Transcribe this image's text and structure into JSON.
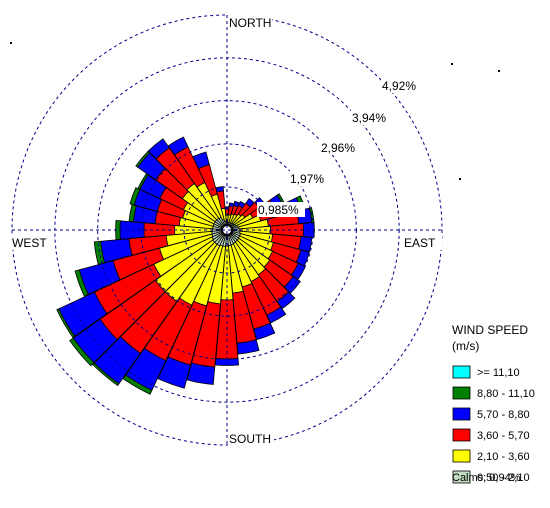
{
  "chart_data": {
    "type": "wind-rose",
    "directions": {
      "north": "NORTH",
      "south": "SOUTH",
      "east": "EAST",
      "west": "WEST"
    },
    "sector_count": 36,
    "rings": [
      {
        "value": 0.985,
        "label": "0,985%"
      },
      {
        "value": 1.97,
        "label": "1,97%"
      },
      {
        "value": 2.96,
        "label": "2,96%"
      },
      {
        "value": 3.94,
        "label": "3,94%"
      },
      {
        "value": 4.92,
        "label": "4,92%"
      }
    ],
    "legend": {
      "title": "WIND SPEED",
      "unit": "(m/s)",
      "bins": [
        {
          "label": ">= 11,10",
          "color": "#00ffff"
        },
        {
          "label": "8,80 - 11,10",
          "color": "#007f00"
        },
        {
          "label": "5,70 - 8,80",
          "color": "#0000ff"
        },
        {
          "label": "3,60 - 5,70",
          "color": "#ff0000"
        },
        {
          "label": "2,10 - 3,60",
          "color": "#ffff00"
        },
        {
          "label": "0,50 - 2,10",
          "color": "#c0dcc0"
        }
      ]
    },
    "calms": "Calms: 0,94%",
    "cumulative_units": "percent frequency, cumulative from inner bin to outer bin",
    "sectors": [
      {
        "dir": 0,
        "c": [
          0.18,
          0.35,
          0.48,
          0.53,
          0.53,
          0.53
        ]
      },
      {
        "dir": 10,
        "c": [
          0.18,
          0.35,
          0.55,
          0.62,
          0.62,
          0.62
        ]
      },
      {
        "dir": 20,
        "c": [
          0.18,
          0.38,
          0.58,
          0.68,
          0.68,
          0.68
        ]
      },
      {
        "dir": 30,
        "c": [
          0.18,
          0.4,
          0.62,
          0.72,
          0.72,
          0.72
        ]
      },
      {
        "dir": 40,
        "c": [
          0.2,
          0.45,
          0.75,
          0.88,
          0.88,
          0.88
        ]
      },
      {
        "dir": 50,
        "c": [
          0.2,
          0.5,
          0.9,
          1.05,
          1.05,
          1.05
        ]
      },
      {
        "dir": 60,
        "c": [
          0.22,
          0.65,
          1.2,
          1.4,
          1.45,
          1.45
        ]
      },
      {
        "dir": 70,
        "c": [
          0.25,
          0.8,
          1.5,
          1.75,
          1.85,
          1.85
        ]
      },
      {
        "dir": 80,
        "c": [
          0.28,
          0.95,
          1.65,
          1.95,
          2.0,
          2.0
        ]
      },
      {
        "dir": 90,
        "c": [
          0.3,
          1.0,
          1.75,
          2.0,
          2.0,
          2.0
        ]
      },
      {
        "dir": 100,
        "c": [
          0.3,
          1.05,
          1.7,
          1.95,
          1.95,
          1.95
        ]
      },
      {
        "dir": 110,
        "c": [
          0.32,
          1.1,
          1.75,
          1.95,
          1.95,
          1.95
        ]
      },
      {
        "dir": 120,
        "c": [
          0.32,
          1.15,
          1.8,
          1.98,
          1.98,
          1.98
        ]
      },
      {
        "dir": 130,
        "c": [
          0.33,
          1.2,
          1.85,
          2.05,
          2.05,
          2.05
        ]
      },
      {
        "dir": 140,
        "c": [
          0.33,
          1.25,
          2.0,
          2.2,
          2.2,
          2.2
        ]
      },
      {
        "dir": 150,
        "c": [
          0.34,
          1.3,
          2.15,
          2.35,
          2.35,
          2.35
        ]
      },
      {
        "dir": 160,
        "c": [
          0.35,
          1.35,
          2.35,
          2.6,
          2.6,
          2.6
        ]
      },
      {
        "dir": 170,
        "c": [
          0.36,
          1.45,
          2.6,
          2.85,
          2.85,
          2.85
        ]
      },
      {
        "dir": 180,
        "c": [
          0.37,
          1.6,
          2.95,
          3.1,
          3.1,
          3.1
        ]
      },
      {
        "dir": 190,
        "c": [
          0.38,
          1.7,
          3.15,
          3.55,
          3.55,
          3.55
        ]
      },
      {
        "dir": 200,
        "c": [
          0.38,
          1.8,
          3.2,
          3.75,
          3.75,
          3.75
        ]
      },
      {
        "dir": 210,
        "c": [
          0.4,
          1.9,
          3.3,
          4.05,
          4.15,
          4.15
        ]
      },
      {
        "dir": 220,
        "c": [
          0.4,
          2.0,
          3.45,
          4.3,
          4.35,
          4.35
        ]
      },
      {
        "dir": 230,
        "c": [
          0.4,
          2.0,
          3.55,
          4.3,
          4.4,
          4.4
        ]
      },
      {
        "dir": 240,
        "c": [
          0.38,
          1.85,
          3.35,
          4.25,
          4.3,
          4.3
        ]
      },
      {
        "dir": 250,
        "c": [
          0.36,
          1.6,
          2.7,
          3.5,
          3.6,
          3.6
        ]
      },
      {
        "dir": 260,
        "c": [
          0.35,
          1.4,
          2.25,
          2.9,
          3.05,
          3.05
        ]
      },
      {
        "dir": 270,
        "c": [
          0.34,
          1.2,
          1.9,
          2.45,
          2.55,
          2.55
        ]
      },
      {
        "dir": 280,
        "c": [
          0.33,
          1.1,
          1.65,
          2.15,
          2.25,
          2.25
        ]
      },
      {
        "dir": 290,
        "c": [
          0.33,
          1.05,
          1.65,
          2.2,
          2.3,
          2.3
        ]
      },
      {
        "dir": 300,
        "c": [
          0.33,
          1.1,
          1.7,
          2.2,
          2.25,
          2.25
        ]
      },
      {
        "dir": 310,
        "c": [
          0.33,
          1.25,
          2.0,
          2.5,
          2.55,
          2.55
        ]
      },
      {
        "dir": 320,
        "c": [
          0.33,
          1.3,
          2.3,
          2.55,
          2.55,
          2.55
        ]
      },
      {
        "dir": 330,
        "c": [
          0.32,
          1.2,
          2.1,
          2.35,
          2.35,
          2.35
        ]
      },
      {
        "dir": 340,
        "c": [
          0.25,
          0.85,
          1.55,
          1.85,
          1.85,
          1.85
        ]
      },
      {
        "dir": 350,
        "c": [
          0.2,
          0.5,
          0.9,
          1.0,
          1.0,
          1.0
        ]
      }
    ]
  }
}
